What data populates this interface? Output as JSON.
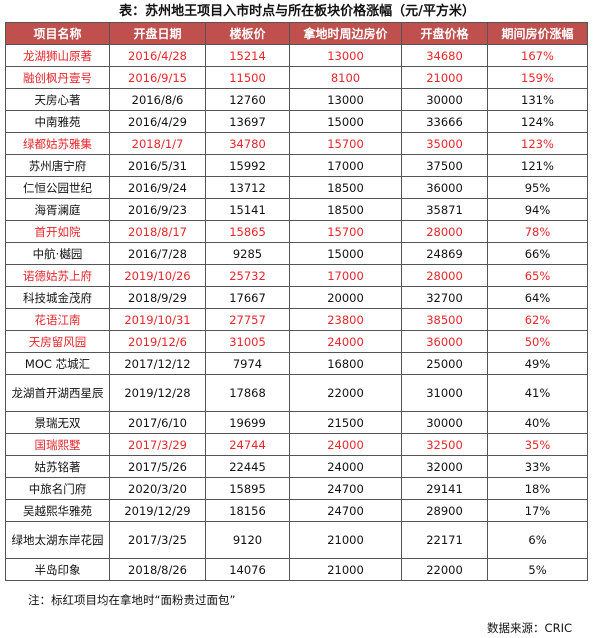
{
  "title": "表：苏州地王项目入市时点与所在板块价格涨幅（元/平方米）",
  "headers": [
    "项目名称",
    "开盘日期",
    "楼板价",
    "拿地时周边房价",
    "开盘价格",
    "期间房价涨幅"
  ],
  "rows": [
    {
      "name": "龙湖狮山原著",
      "date": "2016/4/28",
      "floor_price": "15214",
      "nearby_price": "13000",
      "open_price": "34680",
      "growth": "167%",
      "highlight": true,
      "tall": false
    },
    {
      "name": "融创枫丹壹号",
      "date": "2016/9/15",
      "floor_price": "11500",
      "nearby_price": "8100",
      "open_price": "21000",
      "growth": "159%",
      "highlight": true,
      "tall": false
    },
    {
      "name": "天房心著",
      "date": "2016/8/6",
      "floor_price": "12760",
      "nearby_price": "13000",
      "open_price": "30000",
      "growth": "131%",
      "highlight": false,
      "tall": false
    },
    {
      "name": "中南雅苑",
      "date": "2016/4/29",
      "floor_price": "13697",
      "nearby_price": "15000",
      "open_price": "33666",
      "growth": "124%",
      "highlight": false,
      "tall": false
    },
    {
      "name": "绿都姑苏雅集",
      "date": "2018/1/7",
      "floor_price": "34780",
      "nearby_price": "15700",
      "open_price": "35000",
      "growth": "123%",
      "highlight": true,
      "tall": false
    },
    {
      "name": "苏州唐宁府",
      "date": "2016/5/31",
      "floor_price": "15992",
      "nearby_price": "17000",
      "open_price": "37500",
      "growth": "121%",
      "highlight": false,
      "tall": false
    },
    {
      "name": "仁恒公园世纪",
      "date": "2016/9/24",
      "floor_price": "13712",
      "nearby_price": "18500",
      "open_price": "36000",
      "growth": "95%",
      "highlight": false,
      "tall": false
    },
    {
      "name": "海胥澜庭",
      "date": "2016/9/23",
      "floor_price": "15141",
      "nearby_price": "18500",
      "open_price": "35871",
      "growth": "94%",
      "highlight": false,
      "tall": false
    },
    {
      "name": "首开如院",
      "date": "2018/8/17",
      "floor_price": "15865",
      "nearby_price": "15700",
      "open_price": "28000",
      "growth": "78%",
      "highlight": true,
      "tall": false
    },
    {
      "name": "中航·樾园",
      "date": "2016/7/28",
      "floor_price": "9285",
      "nearby_price": "15000",
      "open_price": "24869",
      "growth": "66%",
      "highlight": false,
      "tall": false
    },
    {
      "name": "诺德姑苏上府",
      "date": "2019/10/26",
      "floor_price": "25732",
      "nearby_price": "17000",
      "open_price": "28000",
      "growth": "65%",
      "highlight": true,
      "tall": false
    },
    {
      "name": "科技城金茂府",
      "date": "2018/9/29",
      "floor_price": "17667",
      "nearby_price": "20000",
      "open_price": "32700",
      "growth": "64%",
      "highlight": false,
      "tall": false
    },
    {
      "name": "花语江南",
      "date": "2019/10/31",
      "floor_price": "27757",
      "nearby_price": "23800",
      "open_price": "38500",
      "growth": "62%",
      "highlight": true,
      "tall": false
    },
    {
      "name": "天房留风园",
      "date": "2019/12/6",
      "floor_price": "31005",
      "nearby_price": "24000",
      "open_price": "36000",
      "growth": "50%",
      "highlight": true,
      "tall": false
    },
    {
      "name": "MOC 芯城汇",
      "date": "2017/12/12",
      "floor_price": "7974",
      "nearby_price": "16800",
      "open_price": "25000",
      "growth": "49%",
      "highlight": false,
      "tall": false
    },
    {
      "name": "龙湖首开湖西星辰",
      "date": "2019/12/28",
      "floor_price": "17868",
      "nearby_price": "22000",
      "open_price": "31000",
      "growth": "41%",
      "highlight": false,
      "tall": true
    },
    {
      "name": "景瑞无双",
      "date": "2017/6/10",
      "floor_price": "19699",
      "nearby_price": "21500",
      "open_price": "30000",
      "growth": "40%",
      "highlight": false,
      "tall": false
    },
    {
      "name": "国瑞熙墅",
      "date": "2017/3/29",
      "floor_price": "24744",
      "nearby_price": "24000",
      "open_price": "32500",
      "growth": "35%",
      "highlight": true,
      "tall": false
    },
    {
      "name": "姑苏铭著",
      "date": "2017/5/26",
      "floor_price": "22445",
      "nearby_price": "24000",
      "open_price": "32000",
      "growth": "33%",
      "highlight": false,
      "tall": false
    },
    {
      "name": "中旅名门府",
      "date": "2020/3/20",
      "floor_price": "15895",
      "nearby_price": "24700",
      "open_price": "29141",
      "growth": "18%",
      "highlight": false,
      "tall": false
    },
    {
      "name": "吴越熙华雅苑",
      "date": "2019/12/29",
      "floor_price": "18156",
      "nearby_price": "24700",
      "open_price": "28900",
      "growth": "17%",
      "highlight": false,
      "tall": false
    },
    {
      "name": "绿地太湖东岸花园",
      "date": "2017/3/25",
      "floor_price": "9120",
      "nearby_price": "21000",
      "open_price": "22171",
      "growth": "6%",
      "highlight": false,
      "tall": true
    },
    {
      "name": "半岛印象",
      "date": "2018/8/26",
      "floor_price": "14076",
      "nearby_price": "21000",
      "open_price": "22000",
      "growth": "5%",
      "highlight": false,
      "tall": false
    }
  ],
  "note": "注：标红项目均在拿地时“面粉贵过面包”",
  "source": "数据来源：CRIC",
  "colors": {
    "header_bg": "#c0504d",
    "highlight_text": "#e8262b"
  }
}
